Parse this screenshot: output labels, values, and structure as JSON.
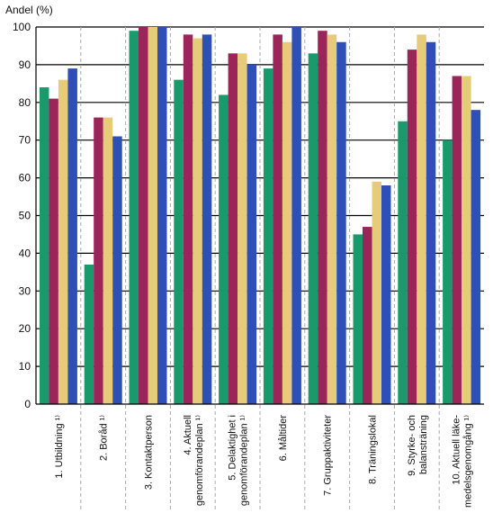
{
  "chart_data": {
    "type": "bar",
    "ylabel": "Andel (%)",
    "ylim": [
      0,
      100
    ],
    "yticks": [
      0,
      10,
      20,
      30,
      40,
      50,
      60,
      70,
      80,
      90,
      100
    ],
    "grid": "horizontal",
    "categories": [
      [
        "1. Utbildning ¹⁾"
      ],
      [
        "2. Boråd ¹⁾"
      ],
      [
        "3. Kontaktperson"
      ],
      [
        "4. Aktuell",
        "genomförandeplan ¹⁾"
      ],
      [
        "5. Delaktighet i",
        "genomförandeplan ¹⁾"
      ],
      [
        "6. Måltider"
      ],
      [
        "7. Gruppaktiviteter"
      ],
      [
        "8. Träningslokal"
      ],
      [
        "9. Styrke- och",
        "balansträning"
      ],
      [
        "10. Aktuell läke-",
        "medelsgenomgång ¹⁾"
      ]
    ],
    "series": [
      {
        "values": [
          84,
          37,
          99,
          86,
          82,
          89,
          93,
          45,
          75,
          70
        ]
      },
      {
        "values": [
          81,
          76,
          100,
          98,
          93,
          98,
          99,
          47,
          94,
          87
        ]
      },
      {
        "values": [
          86,
          76,
          100,
          97,
          93,
          96,
          98,
          59,
          98,
          87
        ]
      },
      {
        "values": [
          89,
          71,
          100,
          98,
          90,
          100,
          96,
          58,
          96,
          78
        ]
      }
    ],
    "colors": [
      "#1a9a6c",
      "#9b2458",
      "#e6cc7a",
      "#2f4fb8"
    ]
  }
}
